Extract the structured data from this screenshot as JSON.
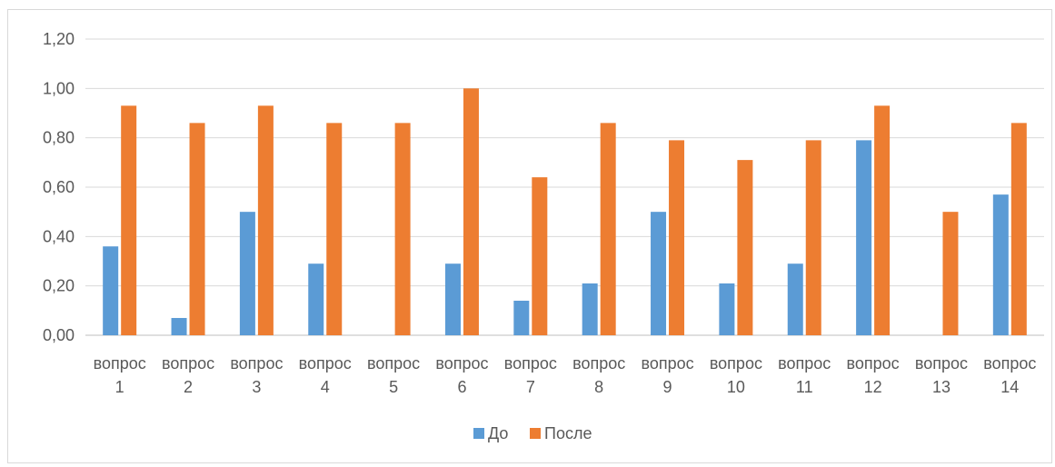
{
  "chart_data": {
    "type": "bar",
    "title": "",
    "xlabel": "",
    "ylabel": "",
    "ylim": [
      0,
      1.2
    ],
    "yticks": [
      "0,00",
      "0,20",
      "0,40",
      "0,60",
      "0,80",
      "1,00",
      "1,20"
    ],
    "grid": true,
    "legend_position": "bottom",
    "categories": [
      [
        "вопрос",
        "1"
      ],
      [
        "вопрос",
        "2"
      ],
      [
        "вопрос",
        "3"
      ],
      [
        "вопрос",
        "4"
      ],
      [
        "вопрос",
        "5"
      ],
      [
        "вопрос",
        "6"
      ],
      [
        "вопрос",
        "7"
      ],
      [
        "вопрос",
        "8"
      ],
      [
        "вопрос",
        "9"
      ],
      [
        "вопрос",
        "10"
      ],
      [
        "вопрос",
        "11"
      ],
      [
        "вопрос",
        "12"
      ],
      [
        "вопрос",
        "13"
      ],
      [
        "вопрос",
        "14"
      ]
    ],
    "series": [
      {
        "name": "До",
        "color": "#5b9bd5",
        "values": [
          0.36,
          0.07,
          0.5,
          0.29,
          0.0,
          0.29,
          0.14,
          0.21,
          0.5,
          0.21,
          0.29,
          0.79,
          0.0,
          0.57
        ]
      },
      {
        "name": "После",
        "color": "#ed7d31",
        "values": [
          0.93,
          0.86,
          0.93,
          0.86,
          0.86,
          1.0,
          0.64,
          0.86,
          0.79,
          0.71,
          0.79,
          0.93,
          0.5,
          0.86
        ]
      }
    ]
  }
}
